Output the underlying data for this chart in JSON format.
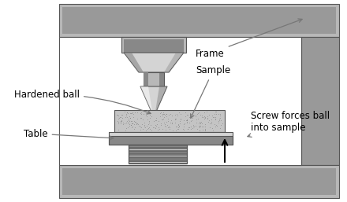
{
  "bg_color": "#ffffff",
  "dark_gray": "#555555",
  "mid_gray": "#888888",
  "light_gray": "#b8b8b8",
  "very_light_gray": "#d4d4d4",
  "frame_gray": "#999999",
  "frame_inner": "#ffffff",
  "spring_light": "#d0d0d0",
  "labels": {
    "hardened_ball": "Hardened ball",
    "frame": "Frame",
    "sample": "Sample",
    "table": "Table",
    "screw": "Screw forces ball\ninto sample"
  },
  "figsize": [
    4.4,
    2.57
  ],
  "dpi": 100
}
